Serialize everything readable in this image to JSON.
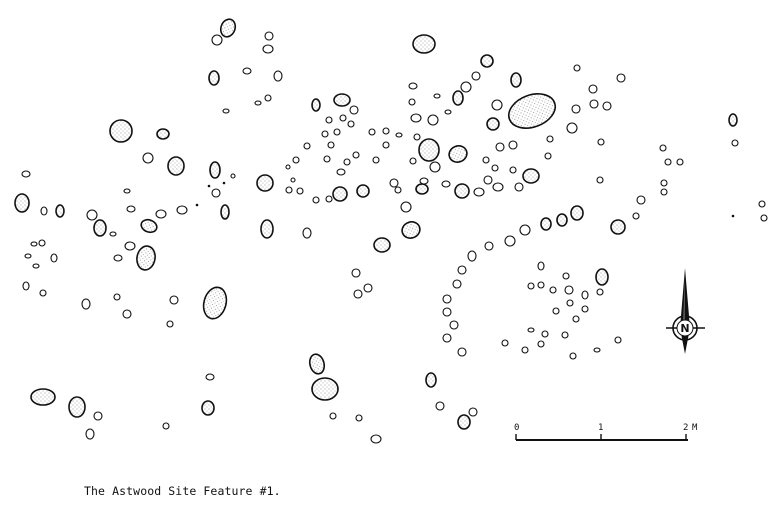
{
  "figure": {
    "caption": "The Astwood Site Feature #1."
  },
  "scale_bar": {
    "tick_labels": [
      "0",
      "1",
      "2"
    ],
    "unit": "M"
  },
  "north_arrow": {
    "label": "N",
    "icon": "north-arrow-icon"
  },
  "colors": {
    "ink": "#111111",
    "stone_stipple": "#9a9a9a",
    "background": "#ffffff"
  }
}
